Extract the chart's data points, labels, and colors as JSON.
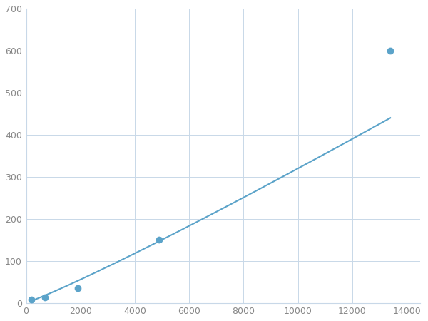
{
  "x_data": [
    200,
    700,
    1900,
    4900,
    13400
  ],
  "y_data": [
    7,
    12,
    35,
    150,
    600
  ],
  "line_color": "#5BA3C9",
  "marker_color": "#5BA3C9",
  "marker_size": 6,
  "line_width": 1.5,
  "xlim": [
    0,
    14500
  ],
  "ylim": [
    0,
    700
  ],
  "xticks": [
    0,
    2000,
    4000,
    6000,
    8000,
    10000,
    12000,
    14000
  ],
  "xticklabels": [
    "0",
    "2000",
    "4000",
    "6000",
    "8000",
    "10000",
    "12000",
    "14000"
  ],
  "yticks": [
    0,
    100,
    200,
    300,
    400,
    500,
    600,
    700
  ],
  "yticklabels": [
    "0",
    "100",
    "200",
    "300",
    "400",
    "500",
    "600",
    "700"
  ],
  "grid_color": "#c8d8e8",
  "grid_linewidth": 0.7,
  "background_color": "#ffffff",
  "tick_fontsize": 9,
  "tick_color": "#888888"
}
